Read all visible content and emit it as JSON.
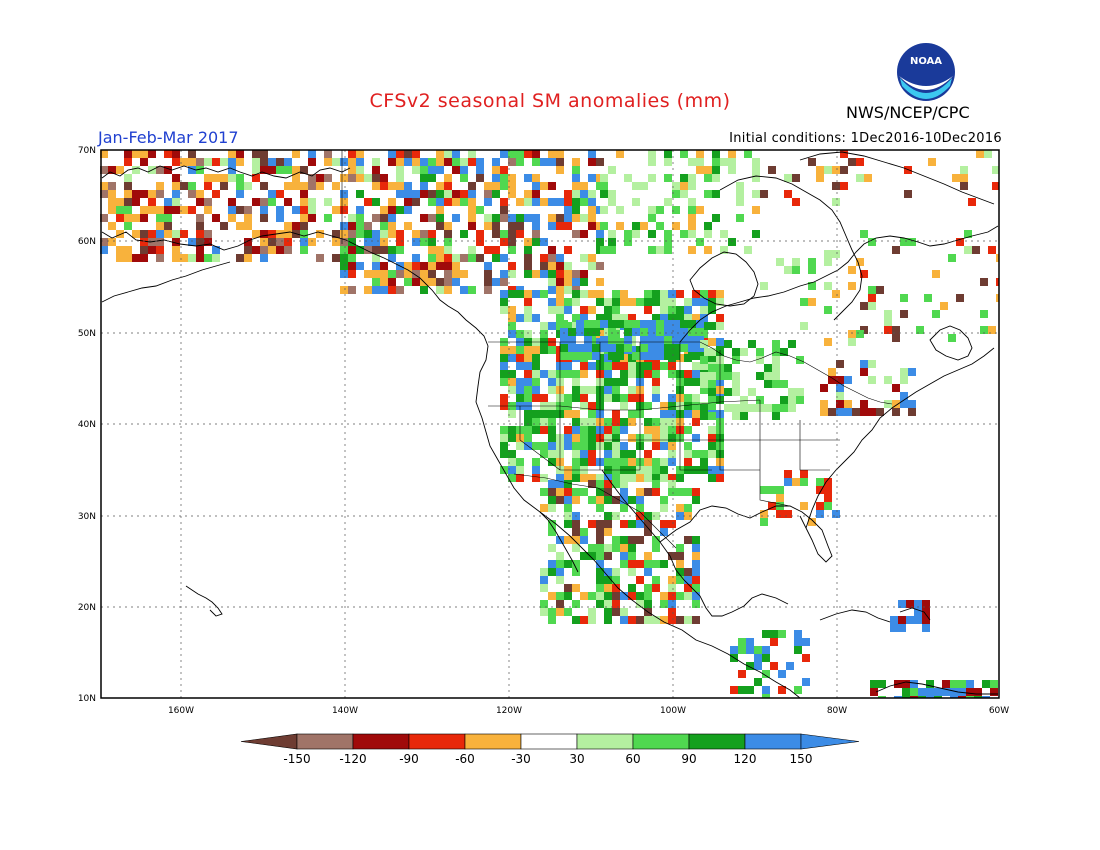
{
  "header": {
    "title": "CFSv2 seasonal SM anomalies (mm)",
    "period": "Jan-Feb-Mar 2017",
    "initial_conditions": "Initial conditions: 1Dec2016-10Dec2016",
    "agency": "NWS/NCEP/CPC",
    "logo_text": "NOAA"
  },
  "axes": {
    "lat_labels": [
      "70N",
      "60N",
      "50N",
      "40N",
      "30N",
      "20N",
      "10N"
    ],
    "lon_labels": [
      "160W",
      "140W",
      "120W",
      "100W",
      "80W",
      "60W"
    ]
  },
  "legend": {
    "ticks": [
      "-150",
      "-120",
      "-90",
      "-60",
      "-30",
      "30",
      "60",
      "90",
      "120",
      "150"
    ],
    "colors": [
      "#6e3c32",
      "#a07468",
      "#a00a0a",
      "#e8280a",
      "#f8b23c",
      "#ffffff",
      "#b4f0a0",
      "#50d850",
      "#14a01e",
      "#3c8ce6",
      "#3c8ce6"
    ]
  }
}
